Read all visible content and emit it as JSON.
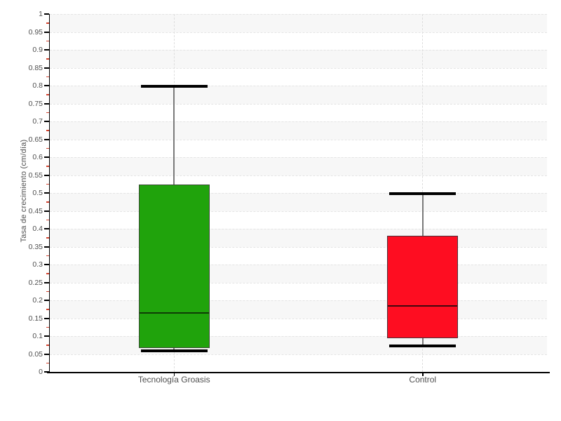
{
  "chart_data": {
    "type": "boxplot",
    "title": "",
    "ylabel": "Tasa de crecimiento (cm/día)",
    "xlabel": "",
    "categories": [
      "Tecnología Groasis",
      "Control"
    ],
    "series": [
      {
        "name": "Tecnología Groasis",
        "min": 0.06,
        "q1": 0.067,
        "median": 0.165,
        "q3": 0.523,
        "max": 0.8,
        "fill": "#20a30c",
        "border": "#3c4a38",
        "median_color": "#0e3c05"
      },
      {
        "name": "Control",
        "min": 0.075,
        "q1": 0.095,
        "median": 0.185,
        "q3": 0.38,
        "max": 0.5,
        "fill": "#fe0d21",
        "border": "#4a3038",
        "median_color": "#40080e"
      }
    ],
    "ylim": [
      0,
      1
    ],
    "yticks": [
      0,
      0.05,
      0.1,
      0.15,
      0.2,
      0.25,
      0.3,
      0.35,
      0.4,
      0.45,
      0.5,
      0.55,
      0.6,
      0.65,
      0.7,
      0.75,
      0.8,
      0.85,
      0.9,
      0.95,
      1
    ],
    "ytick_labels": [
      "0",
      "0.05",
      "0.1",
      "0.15",
      "0.2",
      "0.25",
      "0.3",
      "0.35",
      "0.4",
      "0.45",
      "0.5",
      "0.55",
      "0.6",
      "0.65",
      "0.7",
      "0.75",
      "0.8",
      "0.85",
      "0.9",
      "0.95",
      "1"
    ],
    "minor_ytick_step": 0.025,
    "grid": "horizontal dashed lines each 0.05; alternating shaded bands; vertical dashed guide at each category center",
    "legend": "none",
    "colors": {
      "band": "#f7f7f7",
      "gridline": "#e4e4e4",
      "category_line": "#dedede",
      "axis": "#000000",
      "major_tick": "#000000",
      "minor_tick": "#d2422e",
      "whisker": "#7a7a7a",
      "cap": "#000000",
      "tick_text": "#4f4f4f",
      "background": "#ffffff"
    }
  }
}
